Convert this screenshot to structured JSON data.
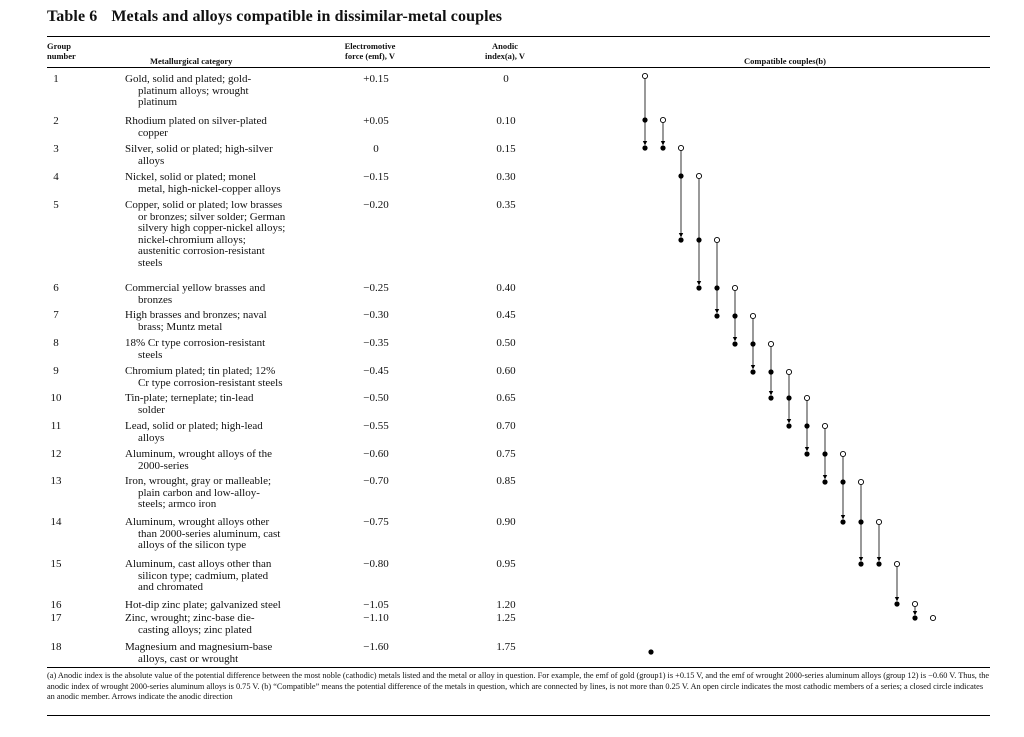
{
  "title": {
    "number": "Table 6",
    "text": "Metals and alloys compatible in dissimilar-metal couples"
  },
  "headers": {
    "group": [
      "Group",
      "number"
    ],
    "category": "Metallurgical category",
    "emf": [
      "Electromotive",
      "force (emf), V"
    ],
    "anodic": [
      "Anodic",
      "index(a), V"
    ],
    "couples": "Compatible couples(b)"
  },
  "rows": [
    {
      "group": "1",
      "category": [
        "Gold, solid and plated; gold-",
        "platinum alloys; wrought",
        "platinum"
      ],
      "emf": "+0.15",
      "anodic": "0"
    },
    {
      "group": "2",
      "category": [
        "Rhodium plated on silver-plated",
        "copper"
      ],
      "emf": "+0.05",
      "anodic": "0.10"
    },
    {
      "group": "3",
      "category": [
        "Silver, solid or plated; high-silver",
        "alloys"
      ],
      "emf": "0",
      "anodic": "0.15"
    },
    {
      "group": "4",
      "category": [
        "Nickel, solid or plated; monel",
        "metal, high-nickel-copper alloys"
      ],
      "emf": "−0.15",
      "anodic": "0.30"
    },
    {
      "group": "5",
      "category": [
        "Copper, solid or plated; low brasses",
        "or bronzes; silver solder; German",
        "silvery high copper-nickel alloys;",
        "nickel-chromium alloys;",
        "austenitic corrosion-resistant",
        "steels"
      ],
      "emf": "−0.20",
      "anodic": "0.35"
    },
    {
      "group": "6",
      "category": [
        "Commercial yellow brasses and",
        "bronzes"
      ],
      "emf": "−0.25",
      "anodic": "0.40"
    },
    {
      "group": "7",
      "category": [
        "High brasses and bronzes; naval",
        "brass; Muntz metal"
      ],
      "emf": "−0.30",
      "anodic": "0.45"
    },
    {
      "group": "8",
      "category": [
        "18% Cr type corrosion-resistant",
        "steels"
      ],
      "emf": "−0.35",
      "anodic": "0.50"
    },
    {
      "group": "9",
      "category": [
        "Chromium plated; tin plated; 12%",
        "Cr type corrosion-resistant steels"
      ],
      "emf": "−0.45",
      "anodic": "0.60"
    },
    {
      "group": "10",
      "category": [
        "Tin-plate; terneplate; tin-lead",
        "solder"
      ],
      "emf": "−0.50",
      "anodic": "0.65"
    },
    {
      "group": "11",
      "category": [
        "Lead, solid or plated; high-lead",
        "alloys"
      ],
      "emf": "−0.55",
      "anodic": "0.70"
    },
    {
      "group": "12",
      "category": [
        "Aluminum, wrought alloys of the",
        "2000-series"
      ],
      "emf": "−0.60",
      "anodic": "0.75"
    },
    {
      "group": "13",
      "category": [
        "Iron, wrought, gray or malleable;",
        "plain carbon and low-alloy-",
        "steels; armco iron"
      ],
      "emf": "−0.70",
      "anodic": "0.85"
    },
    {
      "group": "14",
      "category": [
        "Aluminum, wrought alloys other",
        "than 2000-series aluminum, cast",
        "alloys of the silicon type"
      ],
      "emf": "−0.75",
      "anodic": "0.90"
    },
    {
      "group": "15",
      "category": [
        "Aluminum, cast alloys other than",
        "silicon type; cadmium, plated",
        "and chromated"
      ],
      "emf": "−0.80",
      "anodic": "0.95"
    },
    {
      "group": "16",
      "category": [
        "Hot-dip zinc plate; galvanized steel"
      ],
      "emf": "−1.05",
      "anodic": "1.20"
    },
    {
      "group": "17",
      "category": [
        "Zinc, wrought; zinc-base die-",
        "casting alloys; zinc plated"
      ],
      "emf": "−1.10",
      "anodic": "1.25"
    },
    {
      "group": "18",
      "category": [
        "Magnesium and magnesium-base",
        "alloys, cast or wrought"
      ],
      "emf": "−1.60",
      "anodic": "1.75"
    }
  ],
  "couples": {
    "series": [
      {
        "cathodic_group": 1,
        "anodic_groups": [
          2,
          3
        ]
      },
      {
        "cathodic_group": 2,
        "anodic_groups": [
          3
        ]
      },
      {
        "cathodic_group": 3,
        "anodic_groups": [
          4,
          5
        ]
      },
      {
        "cathodic_group": 4,
        "anodic_groups": [
          5,
          6
        ]
      },
      {
        "cathodic_group": 5,
        "anodic_groups": [
          6,
          7
        ]
      },
      {
        "cathodic_group": 6,
        "anodic_groups": [
          7,
          8
        ]
      },
      {
        "cathodic_group": 7,
        "anodic_groups": [
          8,
          9
        ]
      },
      {
        "cathodic_group": 8,
        "anodic_groups": [
          9,
          10
        ]
      },
      {
        "cathodic_group": 9,
        "anodic_groups": [
          10,
          11
        ]
      },
      {
        "cathodic_group": 10,
        "anodic_groups": [
          11,
          12
        ]
      },
      {
        "cathodic_group": 11,
        "anodic_groups": [
          12,
          13
        ]
      },
      {
        "cathodic_group": 12,
        "anodic_groups": [
          13,
          14
        ]
      },
      {
        "cathodic_group": 13,
        "anodic_groups": [
          14,
          15
        ]
      },
      {
        "cathodic_group": 14,
        "anodic_groups": [
          15
        ]
      },
      {
        "cathodic_group": 15,
        "anodic_groups": [
          16
        ]
      },
      {
        "cathodic_group": 16,
        "anodic_groups": [
          17
        ]
      },
      {
        "cathodic_group": 17,
        "anodic_groups": []
      },
      {
        "cathodic_group": 18,
        "anodic_groups": []
      }
    ]
  },
  "footnote": "(a) Anodic index is the absolute value of the potential difference between the most noble (cathodic) metals listed and the metal or alloy in question. For example, the emf of gold (group1) is +0.15 V, and the emf of wrought 2000-series aluminum alloys (group 12) is −0.60 V. Thus, the anodic index of wrought 2000-series aluminum alloys is 0.75 V. (b) “Compatible” means the potential difference of the metals in question, which are connected by lines, is not more than 0.25 V. An open circle indicates the most cathodic members of a series; a closed circle indicates an anodic member. Arrows indicate the anodic direction"
}
